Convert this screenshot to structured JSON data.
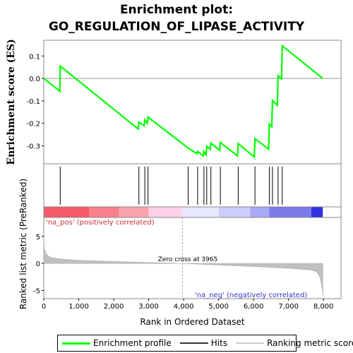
{
  "title_line1": "Enrichment plot:",
  "title_line2": "GO_REGULATION_OF_LIPASE_ACTIVITY",
  "chart_data": {
    "type": "line",
    "es_panel": {
      "ylabel": "Enrichment score (ES)",
      "ylim": [
        -0.38,
        0.17
      ],
      "yticks": [
        -0.3,
        -0.2,
        -0.1,
        0.0,
        0.1
      ],
      "color": "#00ff00",
      "points": [
        [
          0,
          0.0
        ],
        [
          460,
          -0.057
        ],
        [
          470,
          0.055
        ],
        [
          2700,
          -0.225
        ],
        [
          2720,
          -0.195
        ],
        [
          2870,
          -0.21
        ],
        [
          2890,
          -0.185
        ],
        [
          2960,
          -0.2
        ],
        [
          2980,
          -0.172
        ],
        [
          4130,
          -0.31
        ],
        [
          4380,
          -0.335
        ],
        [
          4400,
          -0.325
        ],
        [
          4560,
          -0.345
        ],
        [
          4580,
          -0.325
        ],
        [
          4640,
          -0.34
        ],
        [
          4660,
          -0.302
        ],
        [
          4760,
          -0.315
        ],
        [
          4780,
          -0.288
        ],
        [
          5030,
          -0.32
        ],
        [
          5050,
          -0.285
        ],
        [
          5540,
          -0.345
        ],
        [
          5560,
          -0.29
        ],
        [
          6020,
          -0.35
        ],
        [
          6040,
          -0.268
        ],
        [
          6430,
          -0.315
        ],
        [
          6450,
          -0.203
        ],
        [
          6520,
          -0.215
        ],
        [
          6540,
          -0.098
        ],
        [
          6680,
          -0.12
        ],
        [
          6700,
          0.012
        ],
        [
          6800,
          -0.001
        ],
        [
          6820,
          0.145
        ],
        [
          7980,
          0.0
        ]
      ]
    },
    "hits": [
      470,
      2720,
      2890,
      2980,
      4130,
      4400,
      4580,
      4660,
      4780,
      5050,
      5560,
      6040,
      6450,
      6540,
      6700,
      6820
    ],
    "ranked_panel": {
      "ylabel": "Ranked list metric (PreRanked)",
      "xlabel": "Rank in Ordered Dataset",
      "xlim": [
        0,
        8500
      ],
      "xticks": [
        0,
        1000,
        2000,
        3000,
        4000,
        5000,
        6000,
        7000,
        8000
      ],
      "ylim": [
        -6.5,
        8.5
      ],
      "yticks": [
        -5,
        0,
        5
      ],
      "n": 7980,
      "zero_cross": 3965,
      "zero_cross_label": "Zero cross at 3965",
      "pos_label": "'na_pos' (positively correlated)",
      "neg_label": "'na_neg' (negatively correlated)"
    },
    "heat_segments": [
      {
        "from": 0,
        "to": 1300,
        "color": "#f55a6a"
      },
      {
        "from": 1300,
        "to": 2150,
        "color": "#f9808c"
      },
      {
        "from": 2150,
        "to": 3000,
        "color": "#fba3ab"
      },
      {
        "from": 3000,
        "to": 3965,
        "color": "#fdd0e8"
      },
      {
        "from": 3965,
        "to": 5000,
        "color": "#e6e6ff"
      },
      {
        "from": 5000,
        "to": 5900,
        "color": "#cccdfa"
      },
      {
        "from": 5900,
        "to": 6450,
        "color": "#a9aaf5"
      },
      {
        "from": 6450,
        "to": 7650,
        "color": "#7b7bec"
      },
      {
        "from": 7650,
        "to": 7980,
        "color": "#3131e0"
      }
    ]
  },
  "legend": {
    "items": [
      {
        "label": "Enrichment profile",
        "color": "#00ff00"
      },
      {
        "label": "Hits",
        "color": "#333333"
      },
      {
        "label": "Ranking metric scores",
        "color": "#cccccc"
      }
    ]
  }
}
